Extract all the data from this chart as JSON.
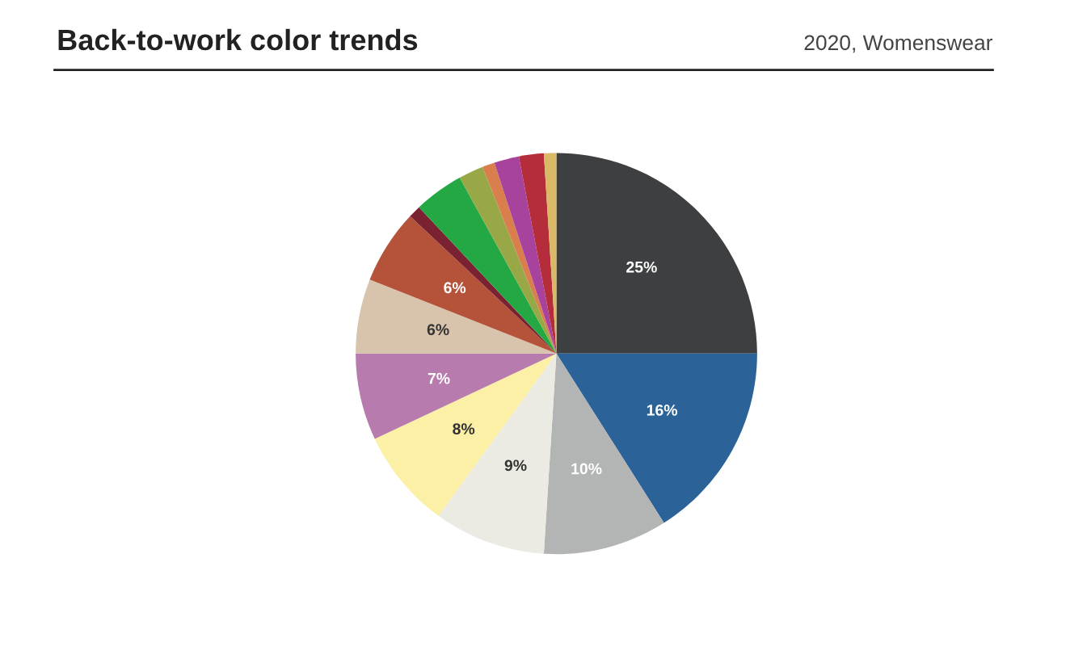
{
  "chart_data": {
    "type": "pie",
    "title": "Back-to-work color trends",
    "subtitle": "2020, Womenswear",
    "categories": [
      null,
      null,
      null,
      null,
      null,
      null,
      null,
      null,
      null,
      null,
      null,
      null,
      null,
      null,
      null
    ],
    "values": [
      25,
      16,
      10,
      9,
      8,
      7,
      6,
      6,
      1,
      4,
      2,
      1,
      2,
      2,
      1
    ],
    "colors": [
      "#3d3f40",
      "#2b6399",
      "#b3b5b4",
      "#ecebe3",
      "#fbf0a6",
      "#b77bae",
      "#d8c4ac",
      "#b5523a",
      "#7a2232",
      "#23a844",
      "#98a847",
      "#d97f4e",
      "#a8439d",
      "#b52d3a",
      "#d9b866"
    ],
    "value_labels": [
      "25%",
      "16%",
      "10%",
      "9%",
      "8%",
      "7%",
      "6%",
      "6%",
      null,
      null,
      null,
      null,
      null,
      null,
      null
    ]
  }
}
